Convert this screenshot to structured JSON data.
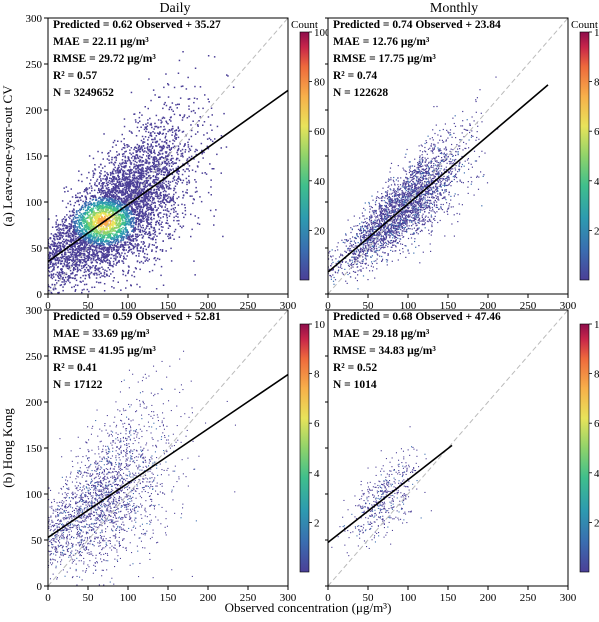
{
  "figure": {
    "column_titles": [
      "Daily",
      "Monthly"
    ],
    "row_labels": [
      "(a) Leave-one-year-out CV",
      "(b) Hong Kong"
    ],
    "xlabel": "Observed concentration (μg/m³)"
  },
  "chart_data": [
    {
      "type": "scatter",
      "id": "a-daily",
      "row": 0,
      "col": 0,
      "xlim": [
        0,
        300
      ],
      "ylim": [
        0,
        300
      ],
      "xticks": [
        0,
        50,
        100,
        150,
        200,
        250,
        300
      ],
      "yticks": [
        0,
        50,
        100,
        150,
        200,
        250,
        300
      ],
      "fit": {
        "slope": 0.62,
        "intercept": 35.27
      },
      "spread": 30,
      "density": "high",
      "stats": [
        "Predicted = 0.62 Observed + 35.27",
        "MAE = 22.11 μg/m³",
        "RMSE = 29.72 μg/m³",
        "R² = 0.57",
        "N = 3249652"
      ],
      "colorbar": {
        "label": "Count",
        "ticks": [
          20,
          40,
          60,
          80,
          100
        ],
        "range": [
          0,
          100
        ]
      }
    },
    {
      "type": "scatter",
      "id": "a-monthly",
      "row": 0,
      "col": 1,
      "xlim": [
        0,
        300
      ],
      "ylim": [
        0,
        300
      ],
      "xticks": [
        0,
        50,
        100,
        150,
        200,
        250,
        300
      ],
      "yticks": [],
      "fit": {
        "slope": 0.74,
        "intercept": 23.84,
        "xmax": 275
      },
      "spread": 18,
      "density": "medium",
      "stats": [
        "Predicted = 0.74 Observed + 23.84",
        "MAE = 12.76 μg/m³",
        "RMSE = 17.75 μg/m³",
        "R² = 0.74",
        "N = 122628"
      ],
      "colorbar": {
        "label": "Count",
        "ticks": [
          2,
          4,
          6,
          8,
          10
        ],
        "range": [
          0,
          10
        ]
      }
    },
    {
      "type": "scatter",
      "id": "b-daily",
      "row": 1,
      "col": 0,
      "xlim": [
        0,
        300
      ],
      "ylim": [
        0,
        300
      ],
      "xticks": [
        0,
        50,
        100,
        150,
        200,
        250,
        300
      ],
      "yticks": [
        0,
        50,
        100,
        150,
        200,
        250,
        300
      ],
      "fit": {
        "slope": 0.59,
        "intercept": 52.81
      },
      "spread": 38,
      "density": "low",
      "stats": [
        "Predicted = 0.59 Observed + 52.81",
        "MAE = 33.69 μg/m³",
        "RMSE = 41.95 μg/m³",
        "R² = 0.41",
        "N = 17122"
      ],
      "colorbar": {
        "label": "",
        "ticks": [
          2,
          4,
          6,
          8,
          10
        ],
        "range": [
          0,
          10
        ]
      }
    },
    {
      "type": "scatter",
      "id": "b-monthly",
      "row": 1,
      "col": 1,
      "xlim": [
        0,
        300
      ],
      "ylim": [
        0,
        300
      ],
      "xticks": [
        0,
        50,
        100,
        150,
        200,
        250,
        300
      ],
      "yticks": [],
      "fit": {
        "slope": 0.68,
        "intercept": 47.46,
        "xmax": 155
      },
      "spread": 20,
      "density": "sparse",
      "stats": [
        "Predicted = 0.68 Observed + 47.46",
        "MAE = 29.18 μg/m³",
        "RMSE = 34.83 μg/m³",
        "R² = 0.52",
        "N = 1014"
      ],
      "colorbar": {
        "label": "",
        "ticks": [
          2,
          4,
          6,
          8,
          10
        ],
        "range": [
          0,
          10
        ]
      }
    }
  ],
  "colors": {
    "viridis_like": [
      "#4b3f97",
      "#3a6db0",
      "#2d9bb0",
      "#3fbf8c",
      "#8fd36a",
      "#e8e35a",
      "#f7b04a",
      "#ee6a3c",
      "#c7254a",
      "#8e0d4b"
    ],
    "point_base": "#4b3f97",
    "fit_line": "#000000",
    "identity_line": "#bbbbbb"
  }
}
